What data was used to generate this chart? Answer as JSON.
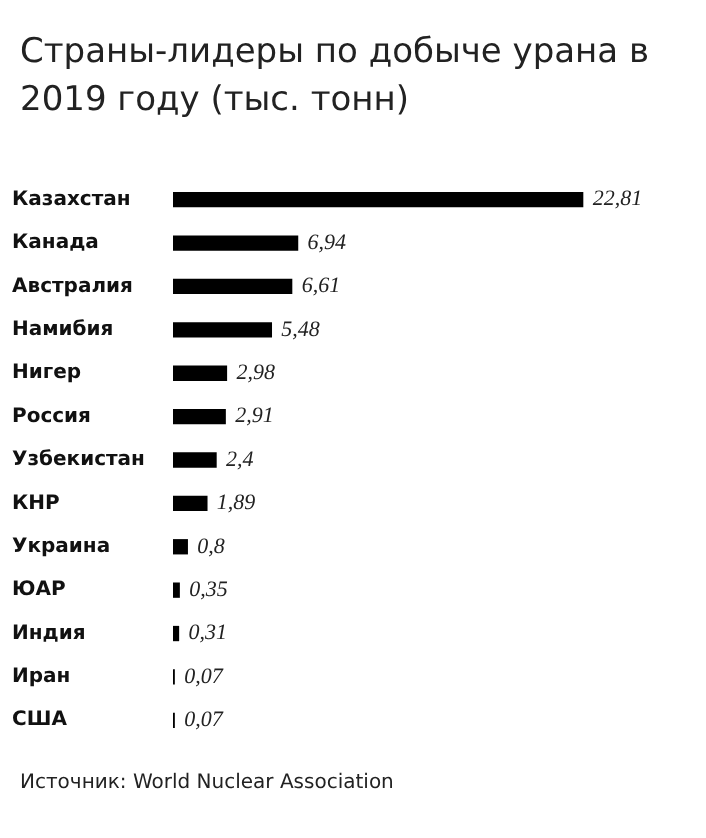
{
  "chart_data": {
    "type": "bar",
    "orientation": "horizontal",
    "title": "Страны-лидеры по добыче урана в 2019 году (тыс. тонн)",
    "categories": [
      "Казахстан",
      "Канада",
      "Австралия",
      "Намибия",
      "Нигер",
      "Россия",
      "Узбекистан",
      "КНР",
      "Украина",
      "ЮАР",
      "Индия",
      "Иран",
      "США"
    ],
    "values": [
      22.81,
      6.94,
      6.61,
      5.48,
      2.98,
      2.91,
      2.4,
      1.89,
      0.8,
      0.35,
      0.31,
      0.07,
      0.07
    ],
    "value_labels": [
      "22,81",
      "6,94",
      "6,61",
      "5,48",
      "2,98",
      "2,91",
      "2,4",
      "1,89",
      "0,8",
      "0,35",
      "0,31",
      "0,07",
      "0,07"
    ],
    "color": "#000000",
    "annotations": [
      "Источник: World Nuclear Association"
    ]
  }
}
